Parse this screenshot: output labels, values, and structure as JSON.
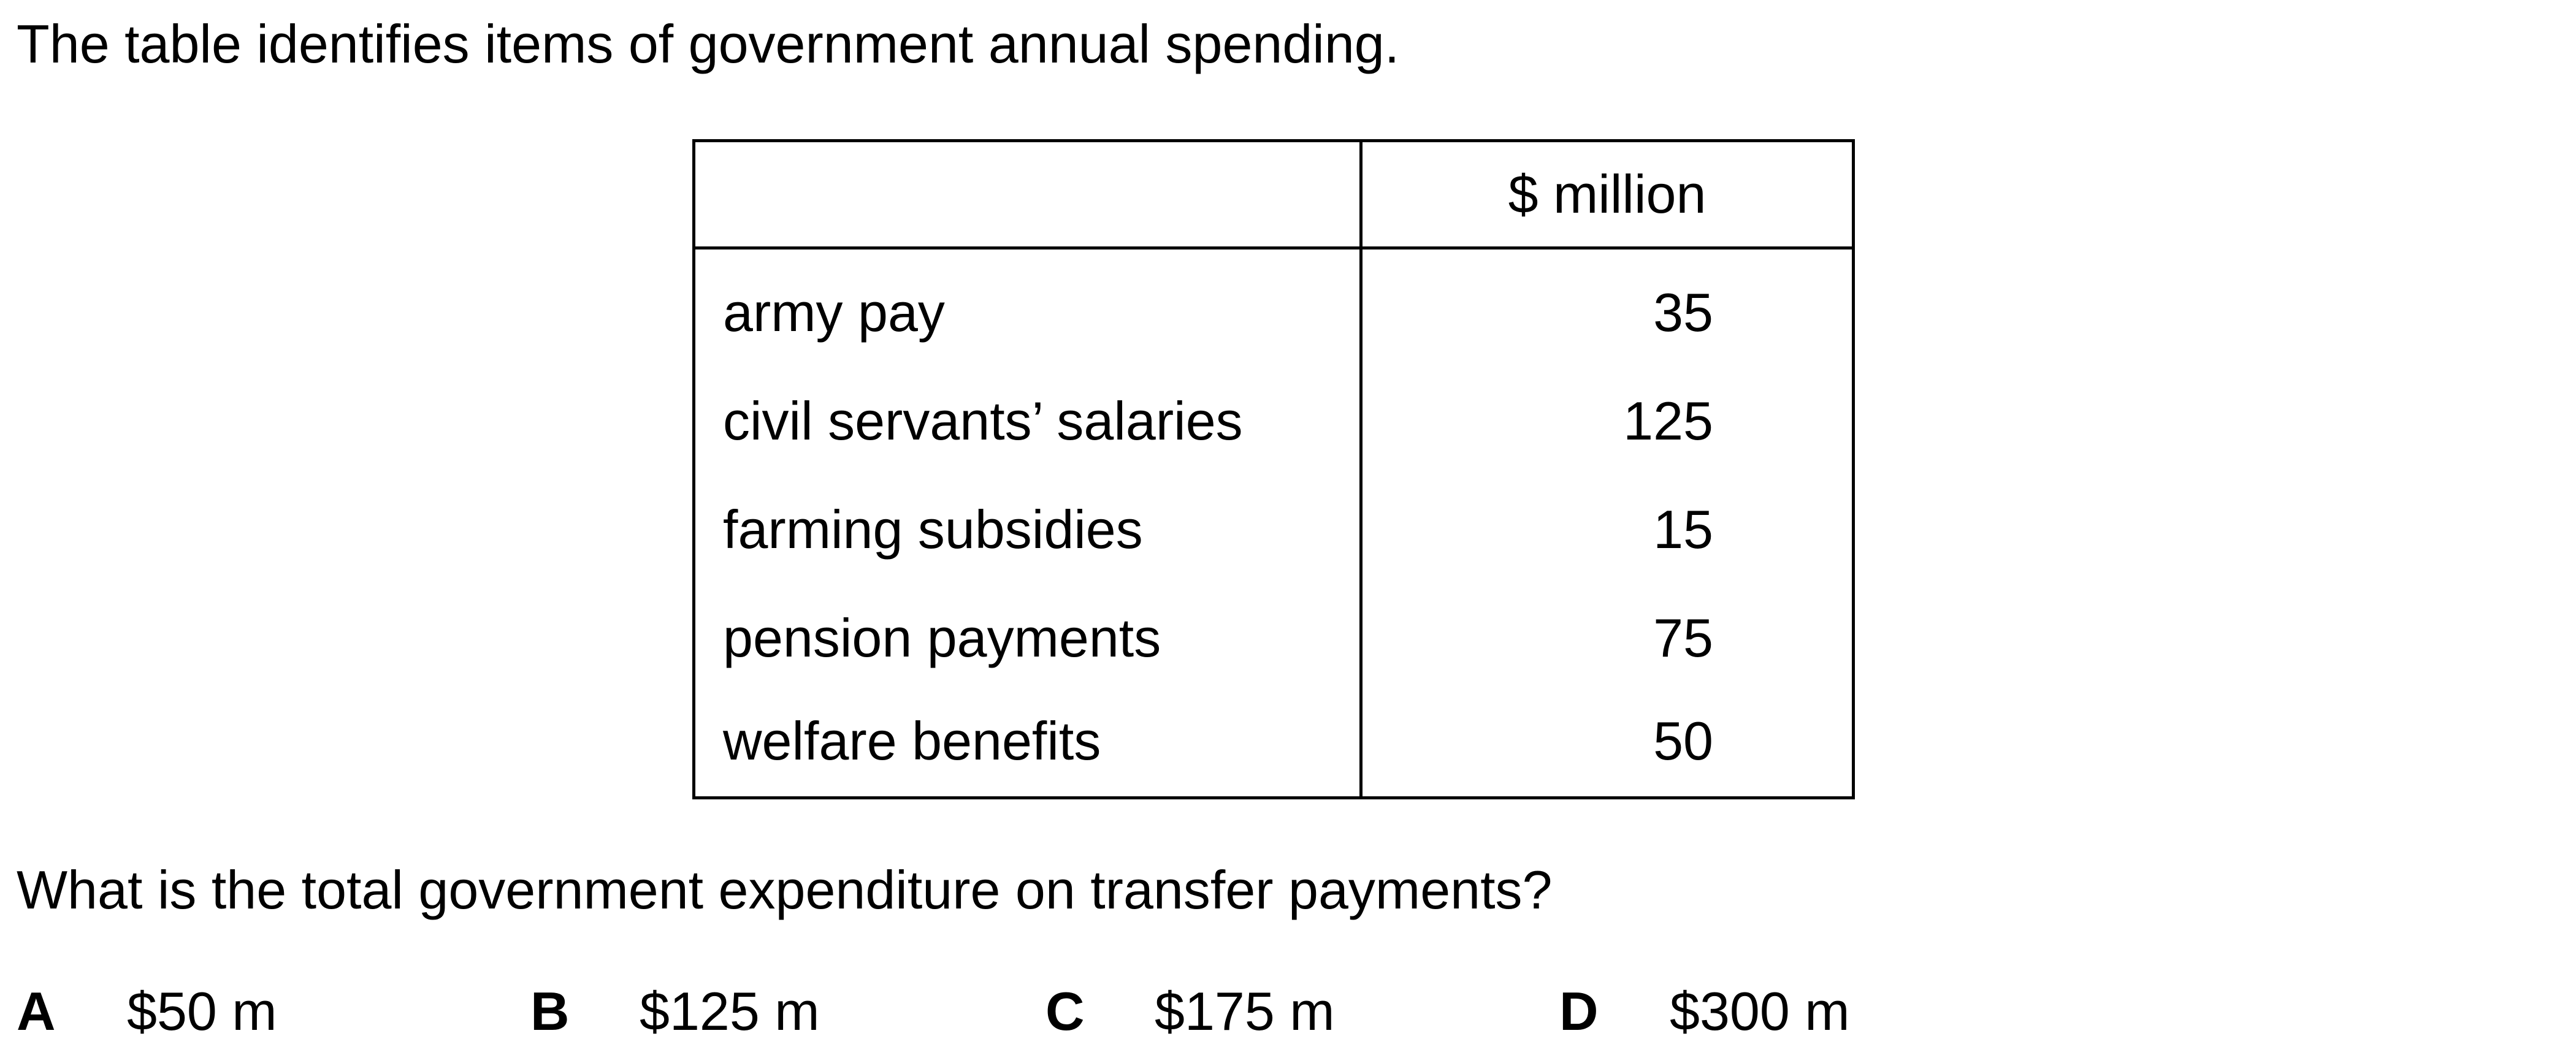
{
  "intro_text": "The table identifies items of government annual spending.",
  "table": {
    "headers": [
      "",
      "$ million"
    ],
    "rows": [
      {
        "item": "army pay",
        "value": "35"
      },
      {
        "item": "civil servants’ salaries",
        "value": "125"
      },
      {
        "item": "farming subsidies",
        "value": "15"
      },
      {
        "item": "pension payments",
        "value": "75"
      },
      {
        "item": "welfare benefits",
        "value": "50"
      }
    ]
  },
  "question": "What is the total government expenditure on transfer payments?",
  "options": [
    {
      "letter": "A",
      "text": "$50 m"
    },
    {
      "letter": "B",
      "text": "$125 m"
    },
    {
      "letter": "C",
      "text": "$175 m"
    },
    {
      "letter": "D",
      "text": "$300 m"
    }
  ]
}
